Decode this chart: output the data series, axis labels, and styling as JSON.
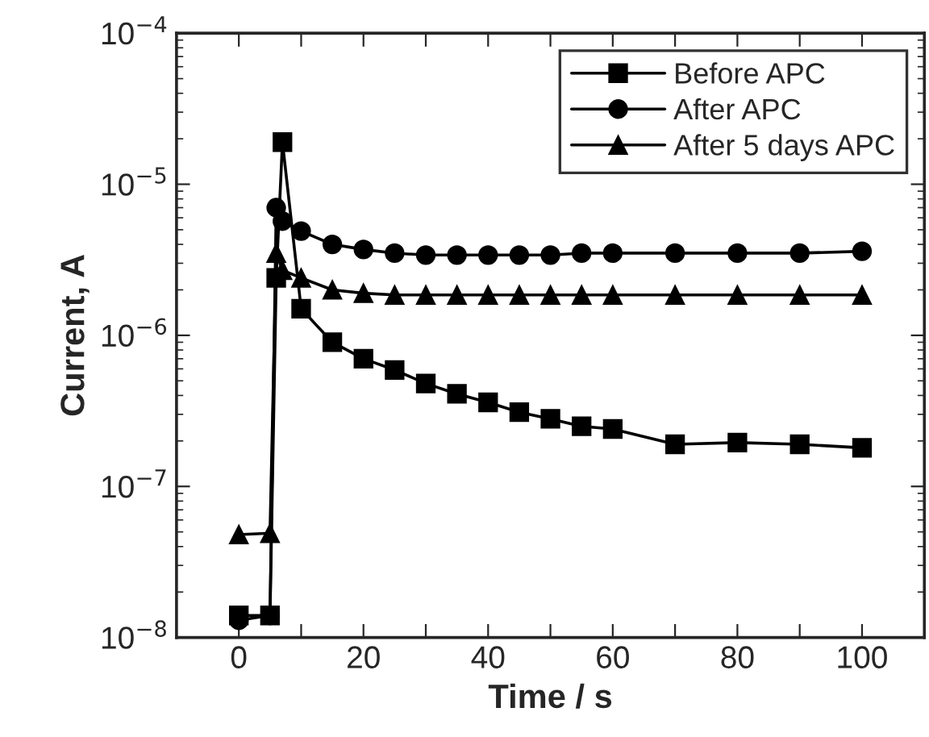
{
  "chart_data": {
    "type": "line",
    "xlabel": "Time / s",
    "ylabel": "Current, A",
    "log": "y",
    "xlim": [
      -10,
      110
    ],
    "ylim": [
      1e-08,
      0.0001
    ],
    "xticks": [
      {
        "value": -10,
        "label": null
      },
      0,
      {
        "value": 10,
        "label": null
      },
      20,
      {
        "value": 30,
        "label": null
      },
      40,
      {
        "value": 50,
        "label": null
      },
      60,
      {
        "value": 70,
        "label": null
      },
      80,
      {
        "value": 90,
        "label": null
      },
      100
    ],
    "yticks": [
      {
        "value": 1e-08,
        "label": "10$^{−8}$"
      },
      {
        "value": 1e-07,
        "label": "10$^{−7}$"
      },
      {
        "value": 1e-06,
        "label": "10$^{−6}$"
      },
      {
        "value": 1e-05,
        "label": "10$^{−5}$"
      },
      {
        "value": 0.0001,
        "label": "10$^{−4}$"
      }
    ],
    "grid": false,
    "legend": "top right",
    "line_style": "solid",
    "series": [
      {
        "name": "Before APC",
        "color": "#000000",
        "marker": "square",
        "x": [
          0,
          5,
          6,
          7,
          10,
          15,
          20,
          25,
          30,
          35,
          40,
          45,
          50,
          55,
          60,
          70,
          80,
          90,
          100
        ],
        "values": [
          1.4e-08,
          1.4e-08,
          2.4e-06,
          1.9e-05,
          1.5e-06,
          9e-07,
          7e-07,
          5.9e-07,
          4.8e-07,
          4.1e-07,
          3.6e-07,
          3.1e-07,
          2.8e-07,
          2.5e-07,
          2.4e-07,
          1.9e-07,
          1.95e-07,
          1.9e-07,
          1.8e-07
        ]
      },
      {
        "name": "After APC",
        "color": "#000000",
        "marker": "circle",
        "x": [
          0,
          5,
          6,
          7,
          10,
          15,
          20,
          25,
          30,
          35,
          40,
          45,
          50,
          55,
          60,
          70,
          80,
          90,
          100
        ],
        "values": [
          1.3e-08,
          1.4e-08,
          7e-06,
          5.7e-06,
          4.9e-06,
          4e-06,
          3.7e-06,
          3.5e-06,
          3.4e-06,
          3.4e-06,
          3.4e-06,
          3.4e-06,
          3.4e-06,
          3.5e-06,
          3.5e-06,
          3.5e-06,
          3.5e-06,
          3.5e-06,
          3.6e-06
        ]
      },
      {
        "name": "After 5 days APC",
        "color": "#000000",
        "marker": "triangle",
        "x": [
          0,
          5,
          6,
          7,
          10,
          15,
          20,
          25,
          30,
          35,
          40,
          45,
          50,
          55,
          60,
          70,
          80,
          90,
          100
        ],
        "values": [
          4.8e-08,
          4.9e-08,
          3.5e-06,
          2.7e-06,
          2.4e-06,
          2e-06,
          1.9e-06,
          1.85e-06,
          1.85e-06,
          1.85e-06,
          1.85e-06,
          1.85e-06,
          1.85e-06,
          1.85e-06,
          1.85e-06,
          1.85e-06,
          1.85e-06,
          1.85e-06,
          1.85e-06
        ]
      }
    ]
  }
}
